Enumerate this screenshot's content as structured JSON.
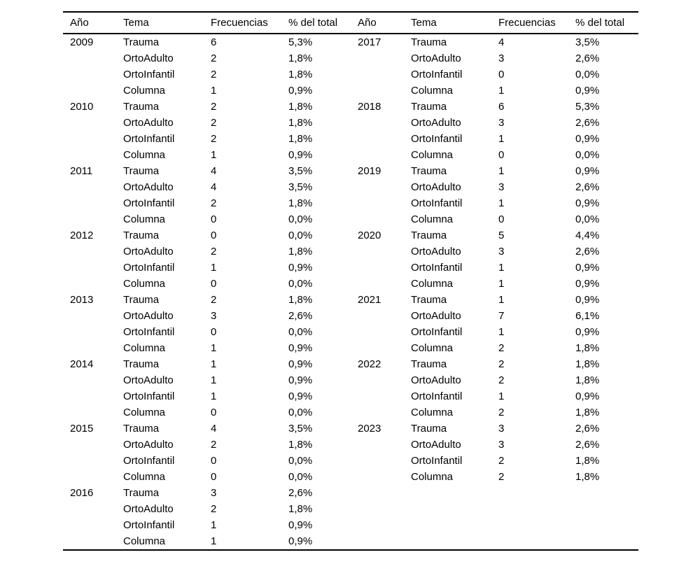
{
  "table": {
    "headers": [
      "Año",
      "Tema",
      "Frecuencias",
      "% del total"
    ],
    "left_years": [
      {
        "year": "2009",
        "entries": [
          {
            "tema": "Trauma",
            "frecuencia": "6",
            "pct": "5,3%"
          },
          {
            "tema": "OrtoAdulto",
            "frecuencia": "2",
            "pct": "1,8%"
          },
          {
            "tema": "OrtoInfantil",
            "frecuencia": "2",
            "pct": "1,8%"
          },
          {
            "tema": "Columna",
            "frecuencia": "1",
            "pct": "0,9%"
          }
        ]
      },
      {
        "year": "2010",
        "entries": [
          {
            "tema": "Trauma",
            "frecuencia": "2",
            "pct": "1,8%"
          },
          {
            "tema": "OrtoAdulto",
            "frecuencia": "2",
            "pct": "1,8%"
          },
          {
            "tema": "OrtoInfantil",
            "frecuencia": "2",
            "pct": "1,8%"
          },
          {
            "tema": "Columna",
            "frecuencia": "1",
            "pct": "0,9%"
          }
        ]
      },
      {
        "year": "2011",
        "entries": [
          {
            "tema": "Trauma",
            "frecuencia": "4",
            "pct": "3,5%"
          },
          {
            "tema": "OrtoAdulto",
            "frecuencia": "4",
            "pct": "3,5%"
          },
          {
            "tema": "OrtoInfantil",
            "frecuencia": "2",
            "pct": "1,8%"
          },
          {
            "tema": "Columna",
            "frecuencia": "0",
            "pct": "0,0%"
          }
        ]
      },
      {
        "year": "2012",
        "entries": [
          {
            "tema": "Trauma",
            "frecuencia": "0",
            "pct": "0,0%"
          },
          {
            "tema": "OrtoAdulto",
            "frecuencia": "2",
            "pct": "1,8%"
          },
          {
            "tema": "OrtoInfantil",
            "frecuencia": "1",
            "pct": "0,9%"
          },
          {
            "tema": "Columna",
            "frecuencia": "0",
            "pct": "0,0%"
          }
        ]
      },
      {
        "year": "2013",
        "entries": [
          {
            "tema": "Trauma",
            "frecuencia": "2",
            "pct": "1,8%"
          },
          {
            "tema": "OrtoAdulto",
            "frecuencia": "3",
            "pct": "2,6%"
          },
          {
            "tema": "OrtoInfantil",
            "frecuencia": "0",
            "pct": "0,0%"
          },
          {
            "tema": "Columna",
            "frecuencia": "1",
            "pct": "0,9%"
          }
        ]
      },
      {
        "year": "2014",
        "entries": [
          {
            "tema": "Trauma",
            "frecuencia": "1",
            "pct": "0,9%"
          },
          {
            "tema": "OrtoAdulto",
            "frecuencia": "1",
            "pct": "0,9%"
          },
          {
            "tema": "OrtoInfantil",
            "frecuencia": "1",
            "pct": "0,9%"
          },
          {
            "tema": "Columna",
            "frecuencia": "0",
            "pct": "0,0%"
          }
        ]
      },
      {
        "year": "2015",
        "entries": [
          {
            "tema": "Trauma",
            "frecuencia": "4",
            "pct": "3,5%"
          },
          {
            "tema": "OrtoAdulto",
            "frecuencia": "2",
            "pct": "1,8%"
          },
          {
            "tema": "OrtoInfantil",
            "frecuencia": "0",
            "pct": "0,0%"
          },
          {
            "tema": "Columna",
            "frecuencia": "0",
            "pct": "0,0%"
          }
        ]
      },
      {
        "year": "2016",
        "entries": [
          {
            "tema": "Trauma",
            "frecuencia": "3",
            "pct": "2,6%"
          },
          {
            "tema": "OrtoAdulto",
            "frecuencia": "2",
            "pct": "1,8%"
          },
          {
            "tema": "OrtoInfantil",
            "frecuencia": "1",
            "pct": "0,9%"
          },
          {
            "tema": "Columna",
            "frecuencia": "1",
            "pct": "0,9%"
          }
        ]
      }
    ],
    "right_years": [
      {
        "year": "2017",
        "entries": [
          {
            "tema": "Trauma",
            "frecuencia": "4",
            "pct": "3,5%"
          },
          {
            "tema": "OrtoAdulto",
            "frecuencia": "3",
            "pct": "2,6%"
          },
          {
            "tema": "OrtoInfantil",
            "frecuencia": "0",
            "pct": "0,0%"
          },
          {
            "tema": "Columna",
            "frecuencia": "1",
            "pct": "0,9%"
          }
        ]
      },
      {
        "year": "2018",
        "entries": [
          {
            "tema": "Trauma",
            "frecuencia": "6",
            "pct": "5,3%"
          },
          {
            "tema": "OrtoAdulto",
            "frecuencia": "3",
            "pct": "2,6%"
          },
          {
            "tema": "OrtoInfantil",
            "frecuencia": "1",
            "pct": "0,9%"
          },
          {
            "tema": "Columna",
            "frecuencia": "0",
            "pct": "0,0%"
          }
        ]
      },
      {
        "year": "2019",
        "entries": [
          {
            "tema": "Trauma",
            "frecuencia": "1",
            "pct": "0,9%"
          },
          {
            "tema": "OrtoAdulto",
            "frecuencia": "3",
            "pct": "2,6%"
          },
          {
            "tema": "OrtoInfantil",
            "frecuencia": "1",
            "pct": "0,9%"
          },
          {
            "tema": "Columna",
            "frecuencia": "0",
            "pct": "0,0%"
          }
        ]
      },
      {
        "year": "2020",
        "entries": [
          {
            "tema": "Trauma",
            "frecuencia": "5",
            "pct": "4,4%"
          },
          {
            "tema": "OrtoAdulto",
            "frecuencia": "3",
            "pct": "2,6%"
          },
          {
            "tema": "OrtoInfantil",
            "frecuencia": "1",
            "pct": "0,9%"
          },
          {
            "tema": "Columna",
            "frecuencia": "1",
            "pct": "0,9%"
          }
        ]
      },
      {
        "year": "2021",
        "entries": [
          {
            "tema": "Trauma",
            "frecuencia": "1",
            "pct": "0,9%"
          },
          {
            "tema": "OrtoAdulto",
            "frecuencia": "7",
            "pct": "6,1%"
          },
          {
            "tema": "OrtoInfantil",
            "frecuencia": "1",
            "pct": "0,9%"
          },
          {
            "tema": "Columna",
            "frecuencia": "2",
            "pct": "1,8%"
          }
        ]
      },
      {
        "year": "2022",
        "entries": [
          {
            "tema": "Trauma",
            "frecuencia": "2",
            "pct": "1,8%"
          },
          {
            "tema": "OrtoAdulto",
            "frecuencia": "2",
            "pct": "1,8%"
          },
          {
            "tema": "OrtoInfantil",
            "frecuencia": "1",
            "pct": "0,9%"
          },
          {
            "tema": "Columna",
            "frecuencia": "2",
            "pct": "1,8%"
          }
        ]
      },
      {
        "year": "2023",
        "entries": [
          {
            "tema": "Trauma",
            "frecuencia": "3",
            "pct": "2,6%"
          },
          {
            "tema": "OrtoAdulto",
            "frecuencia": "3",
            "pct": "2,6%"
          },
          {
            "tema": "OrtoInfantil",
            "frecuencia": "2",
            "pct": "1,8%"
          },
          {
            "tema": "Columna",
            "frecuencia": "2",
            "pct": "1,8%"
          }
        ]
      }
    ]
  }
}
